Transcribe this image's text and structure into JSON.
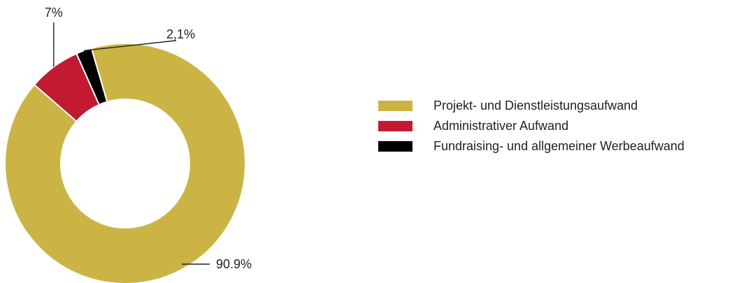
{
  "chart_data": {
    "type": "pie",
    "donut": true,
    "categories": [
      "Projekt- und Dienstleistungsaufwand",
      "Administrativer Aufwand",
      "Fundraising- und allgemeiner Werbeaufwand"
    ],
    "values": [
      90.9,
      7,
      2.1
    ],
    "value_labels": [
      "90.9%",
      "7%",
      "2,1%"
    ],
    "colors": [
      "#cbb443",
      "#c21a33",
      "#000000"
    ],
    "legend_position": "right",
    "title": ""
  },
  "legend": {
    "items": [
      {
        "label": "Projekt- und Dienstleistungsaufwand",
        "color": "#cbb443"
      },
      {
        "label": "Administrativer Aufwand",
        "color": "#c21a33"
      },
      {
        "label": "Fundraising- und allgemeiner Werbeaufwand",
        "color": "#000000"
      }
    ]
  }
}
